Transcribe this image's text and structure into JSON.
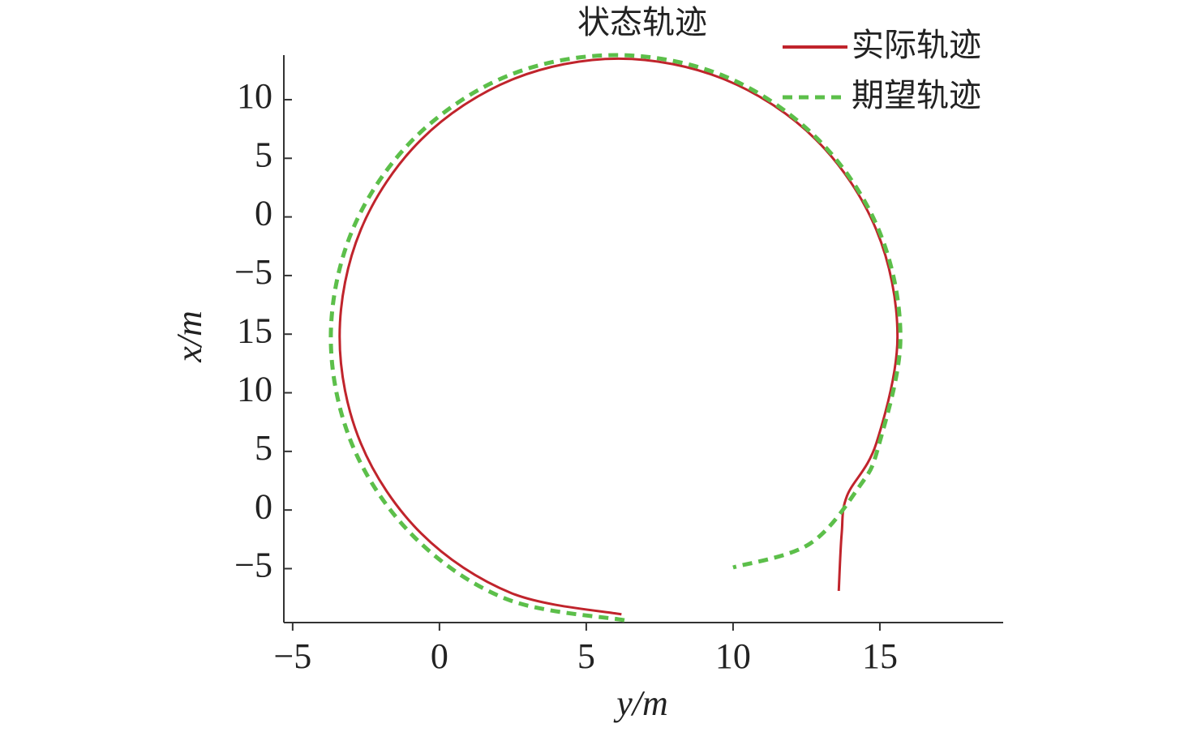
{
  "chart_data": {
    "type": "line",
    "title": "状态轨迹",
    "xlabel": "y/m",
    "ylabel": "x/m",
    "xlim": [
      -5.3,
      19.2
    ],
    "ylim": [
      -34.6,
      13.8
    ],
    "xticks": [
      {
        "value": -5,
        "label": "−5"
      },
      0,
      5,
      10,
      15
    ],
    "yticks": [
      10,
      5,
      0,
      {
        "value": -5,
        "label": "−5"
      },
      {
        "value": -10,
        "label": "15"
      },
      {
        "value": -15,
        "label": "10"
      },
      {
        "value": -20,
        "label": "5"
      },
      {
        "value": -25,
        "label": "0"
      },
      {
        "value": -30,
        "label": "−5"
      }
    ],
    "legend": "upper right",
    "series": [
      {
        "name": "实际轨迹",
        "color": "#c0242c",
        "dash": false,
        "x": [
          6.2,
          2.46,
          -0.62,
          -2.68,
          -3.4,
          -2.68,
          -0.62,
          2.46,
          6.1,
          9.74,
          12.82,
          14.88,
          15.6,
          14.88,
          13.88,
          13.7,
          13.6
        ],
        "values": [
          -33.9,
          -32.1,
          -27.0,
          -19.3,
          -10.2,
          -1.1,
          6.6,
          11.7,
          13.5,
          11.7,
          6.6,
          -1.1,
          -10.2,
          -19.3,
          -23.8,
          -27.0,
          -31.9
        ]
      },
      {
        "name": "期望轨迹",
        "color": "#5cbf4a",
        "dash": true,
        "x": [
          6.3,
          2.29,
          -0.86,
          -2.96,
          -3.7,
          -2.96,
          -0.86,
          2.29,
          6.0,
          9.71,
          12.86,
          14.96,
          15.7,
          14.96,
          14.3,
          12.6,
          10.0
        ],
        "values": [
          -34.4,
          -32.6,
          -27.3,
          -19.5,
          -10.3,
          -1.1,
          6.7,
          12.0,
          13.8,
          12.0,
          6.7,
          -1.1,
          -10.3,
          -19.5,
          -23.0,
          -27.9,
          -29.9
        ]
      }
    ]
  }
}
